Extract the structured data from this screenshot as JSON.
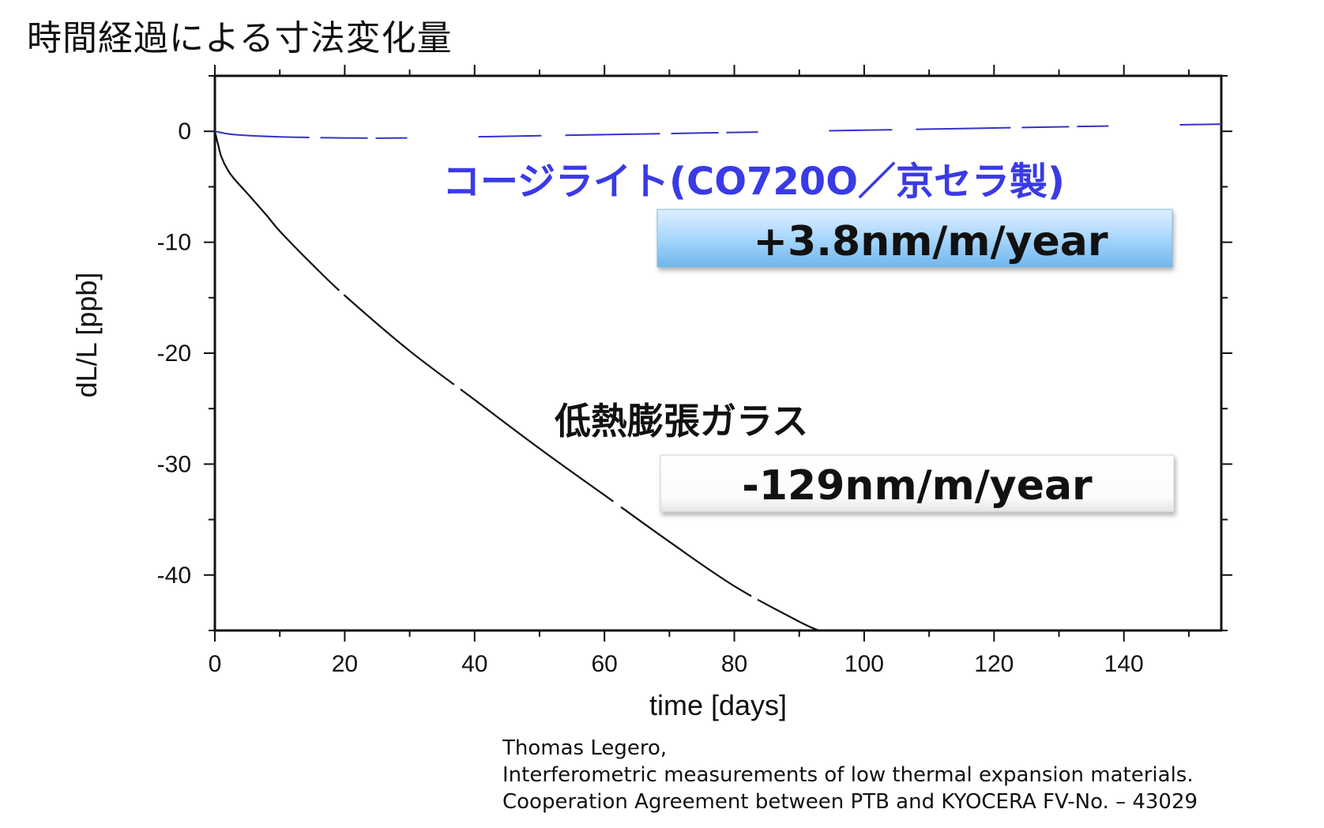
{
  "page": {
    "title": "時間経過による寸法変化量"
  },
  "chart_data": {
    "type": "line",
    "xlabel": "time [days]",
    "ylabel": "dL/L [ppb]",
    "xlim": [
      0,
      155
    ],
    "ylim": [
      -45,
      5
    ],
    "xticks": [
      0,
      20,
      40,
      60,
      80,
      100,
      120,
      140
    ],
    "yticks": [
      0,
      -10,
      -20,
      -30,
      -40
    ],
    "grid": false,
    "series": [
      {
        "name": "コージライト(CO720O／京セラ製)",
        "color": "#3333cc",
        "x": [
          0,
          3,
          10,
          20,
          30,
          40,
          50,
          60,
          70,
          80,
          90,
          100,
          110,
          120,
          130,
          140,
          150,
          155
        ],
        "y": [
          0,
          -0.3,
          -0.5,
          -0.6,
          -0.6,
          -0.5,
          -0.4,
          -0.3,
          -0.2,
          -0.1,
          0.0,
          0.1,
          0.2,
          0.3,
          0.4,
          0.5,
          0.6,
          0.65
        ]
      },
      {
        "name": "低熱膨張ガラス",
        "color": "#111111",
        "x": [
          0,
          0.5,
          1,
          2,
          3,
          5,
          8,
          10,
          15,
          20,
          30,
          40,
          50,
          60,
          70,
          80,
          90,
          93
        ],
        "y": [
          0,
          -1.2,
          -2.3,
          -3.5,
          -4.3,
          -5.6,
          -7.6,
          -9.0,
          -12.0,
          -14.8,
          -19.8,
          -24.2,
          -28.6,
          -32.8,
          -37.0,
          -41.0,
          -44.2,
          -45.0
        ]
      }
    ],
    "annotations": {
      "blue_series_label": "コージライト(CO720O／京セラ製)",
      "blue_rate": "+3.8nm/m/year",
      "black_series_label": "低熱膨張ガラス",
      "black_rate": "-129nm/m/year"
    }
  },
  "citation": {
    "line1": "Thomas Legero,",
    "line2": "Interferometric measurements of low thermal expansion materials.",
    "line3": "Cooperation Agreement between PTB and KYOCERA FV-No. – 43029"
  },
  "colors": {
    "blue_label": "#3a3ae6",
    "badge_blue_top": "#c9e6ff",
    "badge_blue_bottom": "#7fc0f2"
  }
}
